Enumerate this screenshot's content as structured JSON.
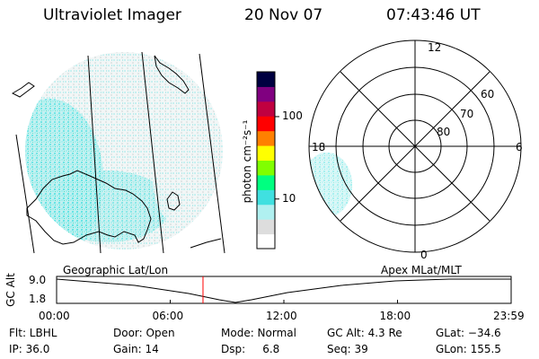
{
  "header": {
    "title": "Ultraviolet Imager",
    "date": "20 Nov 07",
    "time": "07:43:46 UT"
  },
  "colorbar": {
    "label": "photon cm⁻²s⁻¹",
    "ticks": [
      {
        "value": 100,
        "label": "100"
      },
      {
        "value": 10,
        "label": "10"
      }
    ],
    "log_range": [
      2.5,
      350
    ],
    "colors": [
      "#ffffff",
      "#dddddd",
      "#b0f0f0",
      "#40e0e0",
      "#00ff80",
      "#80ff00",
      "#ffff00",
      "#ff8000",
      "#ff0000",
      "#c00040",
      "#800080",
      "#000040"
    ]
  },
  "polar_plot": {
    "mlt_labels": {
      "top": "12",
      "left": "18",
      "right": "6",
      "bottom": "0"
    },
    "lat_labels": [
      "60",
      "70",
      "80"
    ]
  },
  "timeline": {
    "left_label": "Geographic Lat/Lon",
    "right_label": "Apex MLat/MLT",
    "axis_title": "GC Alt",
    "y_top": "9.0",
    "y_bottom": "1.8",
    "x_ticks": [
      "00:00",
      "06:00",
      "12:00",
      "18:00",
      "23:59"
    ],
    "current_hour": 7.73,
    "marker_color": "#ff0000"
  },
  "info": {
    "row1": [
      "Flt: LBHL",
      "Door: Open",
      "Mode: Normal",
      "GC Alt: 4.3 Re",
      "GLat: −34.6"
    ],
    "row2": [
      "IP: 36.0",
      "Gain: 14",
      "Dsp:     6.8",
      "Seq: 39",
      "GLon: 155.5"
    ]
  }
}
